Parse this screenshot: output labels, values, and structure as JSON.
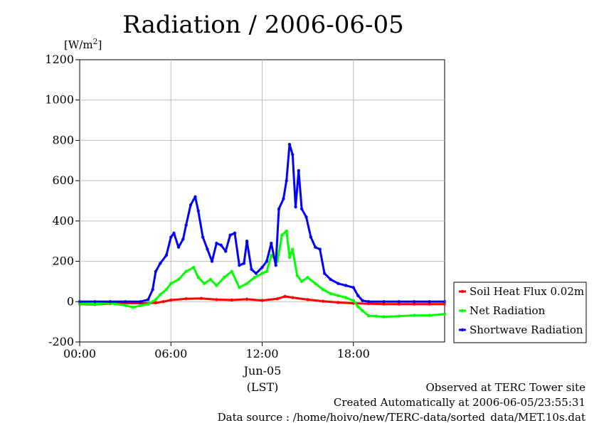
{
  "chart_data": {
    "type": "line",
    "title": "Radiation / 2006-06-05",
    "ylabel": "[W/m",
    "ylabel_sup": "2",
    "ylabel_close": "]",
    "xlabel": "(LST)",
    "x_date_label": "Jun-05",
    "ylim": [
      -200,
      1200
    ],
    "yticks": [
      -200,
      0,
      200,
      400,
      600,
      800,
      1000,
      1200
    ],
    "xlim_hours": [
      0,
      24
    ],
    "xticks": [
      {
        "hour": 0,
        "label": "00:00"
      },
      {
        "hour": 6,
        "label": "06:00"
      },
      {
        "hour": 12,
        "label": "12:00"
      },
      {
        "hour": 18,
        "label": "18:00"
      }
    ],
    "grid": true,
    "legend_position": "right",
    "series": [
      {
        "name": "Soil Heat Flux 0.02m",
        "color": "#ff0000",
        "x": [
          0,
          1,
          2,
          3,
          4,
          5,
          5.5,
          6,
          7,
          8,
          9,
          10,
          11,
          12,
          13,
          13.5,
          14,
          15,
          16,
          17,
          18,
          19,
          20,
          21,
          22,
          23,
          24
        ],
        "y": [
          -12,
          -14,
          -10,
          -8,
          -8,
          -6,
          0,
          8,
          14,
          16,
          10,
          8,
          12,
          6,
          14,
          26,
          20,
          10,
          2,
          -4,
          -8,
          -10,
          -12,
          -12,
          -12,
          -12,
          -12
        ]
      },
      {
        "name": "Net Radiation",
        "color": "#00ff00",
        "x": [
          0,
          1,
          2,
          3,
          3.5,
          4,
          4.5,
          5,
          5.3,
          5.7,
          6,
          6.5,
          7,
          7.5,
          7.8,
          8.2,
          8.6,
          9,
          9.5,
          10,
          10.5,
          11,
          11.5,
          12,
          12.3,
          12.6,
          13,
          13.3,
          13.6,
          13.8,
          14,
          14.3,
          14.6,
          15,
          15.5,
          16,
          16.5,
          17,
          17.5,
          18,
          18.3,
          18.6,
          19,
          19.5,
          20,
          21,
          22,
          23,
          24
        ],
        "y": [
          -10,
          -12,
          -8,
          -18,
          -28,
          -20,
          -12,
          10,
          35,
          60,
          90,
          110,
          150,
          170,
          120,
          90,
          110,
          80,
          120,
          150,
          70,
          90,
          120,
          140,
          150,
          230,
          200,
          330,
          350,
          220,
          260,
          130,
          100,
          120,
          90,
          60,
          40,
          30,
          20,
          5,
          -25,
          -45,
          -70,
          -72,
          -75,
          -72,
          -68,
          -68,
          -62
        ]
      },
      {
        "name": "Shortwave Radiation",
        "color": "#0000ff",
        "x": [
          0,
          1,
          2,
          3,
          4,
          4.5,
          4.8,
          5,
          5.3,
          5.7,
          6,
          6.2,
          6.5,
          6.8,
          7,
          7.3,
          7.6,
          7.8,
          8.1,
          8.4,
          8.7,
          9,
          9.3,
          9.6,
          9.9,
          10.2,
          10.5,
          10.8,
          11,
          11.3,
          11.6,
          12,
          12.3,
          12.6,
          12.9,
          13.1,
          13.4,
          13.6,
          13.8,
          14.0,
          14.2,
          14.4,
          14.6,
          14.9,
          15.2,
          15.5,
          15.8,
          16.1,
          16.5,
          17,
          17.5,
          18,
          18.3,
          18.6,
          19,
          20,
          21,
          22,
          23,
          24
        ],
        "y": [
          0,
          0,
          0,
          0,
          0,
          10,
          60,
          150,
          190,
          230,
          320,
          340,
          270,
          310,
          380,
          480,
          520,
          450,
          320,
          260,
          200,
          290,
          280,
          250,
          330,
          340,
          180,
          190,
          300,
          160,
          140,
          170,
          200,
          290,
          180,
          460,
          510,
          600,
          780,
          730,
          470,
          650,
          460,
          420,
          320,
          270,
          260,
          140,
          110,
          90,
          80,
          70,
          30,
          5,
          0,
          0,
          0,
          0,
          0,
          0
        ]
      }
    ],
    "footer_lines": [
      "Observed at TERC Tower site",
      "Created Automatically at 2006-06-05/23:55:31",
      "Data source : /home/hoivo/new/TERC-data/sorted_data/MET.10s.dat"
    ]
  }
}
